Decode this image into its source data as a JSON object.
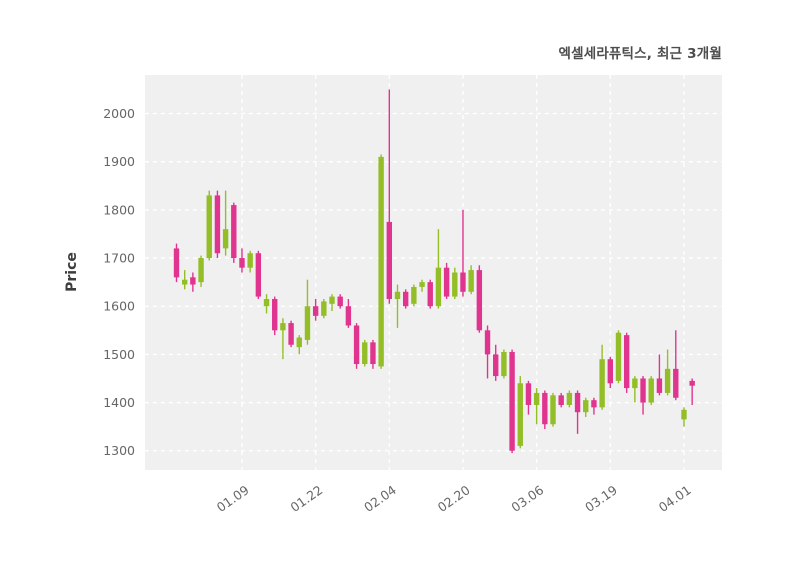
{
  "page": {
    "background": "#ffffff"
  },
  "chart": {
    "title": "엑셀세라퓨틱스, 최근 3개월",
    "ylabel": "Price"
  },
  "chart_data": {
    "type": "candlestick",
    "title": "엑셀세라퓨틱스, 최근 3개월",
    "xlabel": "",
    "ylabel": "Price",
    "ylim": [
      1260,
      2080
    ],
    "y_ticks": [
      1300,
      1400,
      1500,
      1600,
      1700,
      1800,
      1900,
      2000
    ],
    "x_tick_labels": [
      "01.09",
      "01.22",
      "02.04",
      "02.20",
      "03.06",
      "03.19",
      "04.01"
    ],
    "x_tick_indices": [
      8,
      17,
      26,
      35,
      44,
      53,
      62
    ],
    "grid": "dashed",
    "legend": "none",
    "panel_bg": "#f0f0f1",
    "grid_color": "#ffffff",
    "up_color": "#94be28",
    "down_color": "#e0358f",
    "candles": [
      [
        1720,
        1730,
        1650,
        1660
      ],
      [
        1645,
        1675,
        1635,
        1655
      ],
      [
        1660,
        1670,
        1630,
        1645
      ],
      [
        1650,
        1705,
        1640,
        1700
      ],
      [
        1700,
        1840,
        1695,
        1830
      ],
      [
        1830,
        1840,
        1700,
        1710
      ],
      [
        1720,
        1840,
        1705,
        1760
      ],
      [
        1810,
        1815,
        1690,
        1700
      ],
      [
        1700,
        1720,
        1670,
        1680
      ],
      [
        1680,
        1715,
        1670,
        1710
      ],
      [
        1710,
        1715,
        1615,
        1620
      ],
      [
        1600,
        1625,
        1585,
        1615
      ],
      [
        1615,
        1620,
        1540,
        1550
      ],
      [
        1550,
        1575,
        1490,
        1565
      ],
      [
        1565,
        1570,
        1515,
        1520
      ],
      [
        1515,
        1540,
        1500,
        1535
      ],
      [
        1530,
        1655,
        1520,
        1600
      ],
      [
        1600,
        1615,
        1570,
        1580
      ],
      [
        1580,
        1615,
        1575,
        1610
      ],
      [
        1605,
        1625,
        1590,
        1620
      ],
      [
        1620,
        1625,
        1595,
        1600
      ],
      [
        1600,
        1615,
        1555,
        1560
      ],
      [
        1560,
        1565,
        1470,
        1480
      ],
      [
        1480,
        1530,
        1475,
        1525
      ],
      [
        1525,
        1530,
        1470,
        1480
      ],
      [
        1475,
        1915,
        1470,
        1910
      ],
      [
        1775,
        2050,
        1605,
        1615
      ],
      [
        1615,
        1645,
        1555,
        1630
      ],
      [
        1630,
        1635,
        1595,
        1600
      ],
      [
        1605,
        1645,
        1600,
        1640
      ],
      [
        1640,
        1655,
        1630,
        1650
      ],
      [
        1650,
        1655,
        1595,
        1600
      ],
      [
        1600,
        1760,
        1595,
        1680
      ],
      [
        1680,
        1690,
        1615,
        1620
      ],
      [
        1620,
        1680,
        1615,
        1670
      ],
      [
        1670,
        1800,
        1620,
        1630
      ],
      [
        1630,
        1685,
        1625,
        1675
      ],
      [
        1675,
        1685,
        1545,
        1550
      ],
      [
        1550,
        1560,
        1450,
        1500
      ],
      [
        1500,
        1520,
        1445,
        1455
      ],
      [
        1455,
        1510,
        1450,
        1505
      ],
      [
        1505,
        1510,
        1295,
        1300
      ],
      [
        1310,
        1455,
        1305,
        1440
      ],
      [
        1440,
        1445,
        1375,
        1395
      ],
      [
        1395,
        1430,
        1355,
        1420
      ],
      [
        1420,
        1425,
        1345,
        1355
      ],
      [
        1355,
        1420,
        1350,
        1415
      ],
      [
        1415,
        1420,
        1390,
        1395
      ],
      [
        1395,
        1425,
        1390,
        1420
      ],
      [
        1420,
        1425,
        1335,
        1380
      ],
      [
        1380,
        1410,
        1370,
        1405
      ],
      [
        1405,
        1410,
        1375,
        1390
      ],
      [
        1390,
        1520,
        1385,
        1490
      ],
      [
        1490,
        1495,
        1430,
        1440
      ],
      [
        1445,
        1550,
        1440,
        1545
      ],
      [
        1540,
        1545,
        1420,
        1430
      ],
      [
        1430,
        1455,
        1400,
        1450
      ],
      [
        1450,
        1455,
        1375,
        1400
      ],
      [
        1400,
        1455,
        1395,
        1450
      ],
      [
        1450,
        1500,
        1415,
        1420
      ],
      [
        1420,
        1510,
        1415,
        1470
      ],
      [
        1470,
        1550,
        1405,
        1410
      ],
      [
        1365,
        1390,
        1350,
        1385
      ],
      [
        1445,
        1450,
        1395,
        1435
      ]
    ]
  }
}
